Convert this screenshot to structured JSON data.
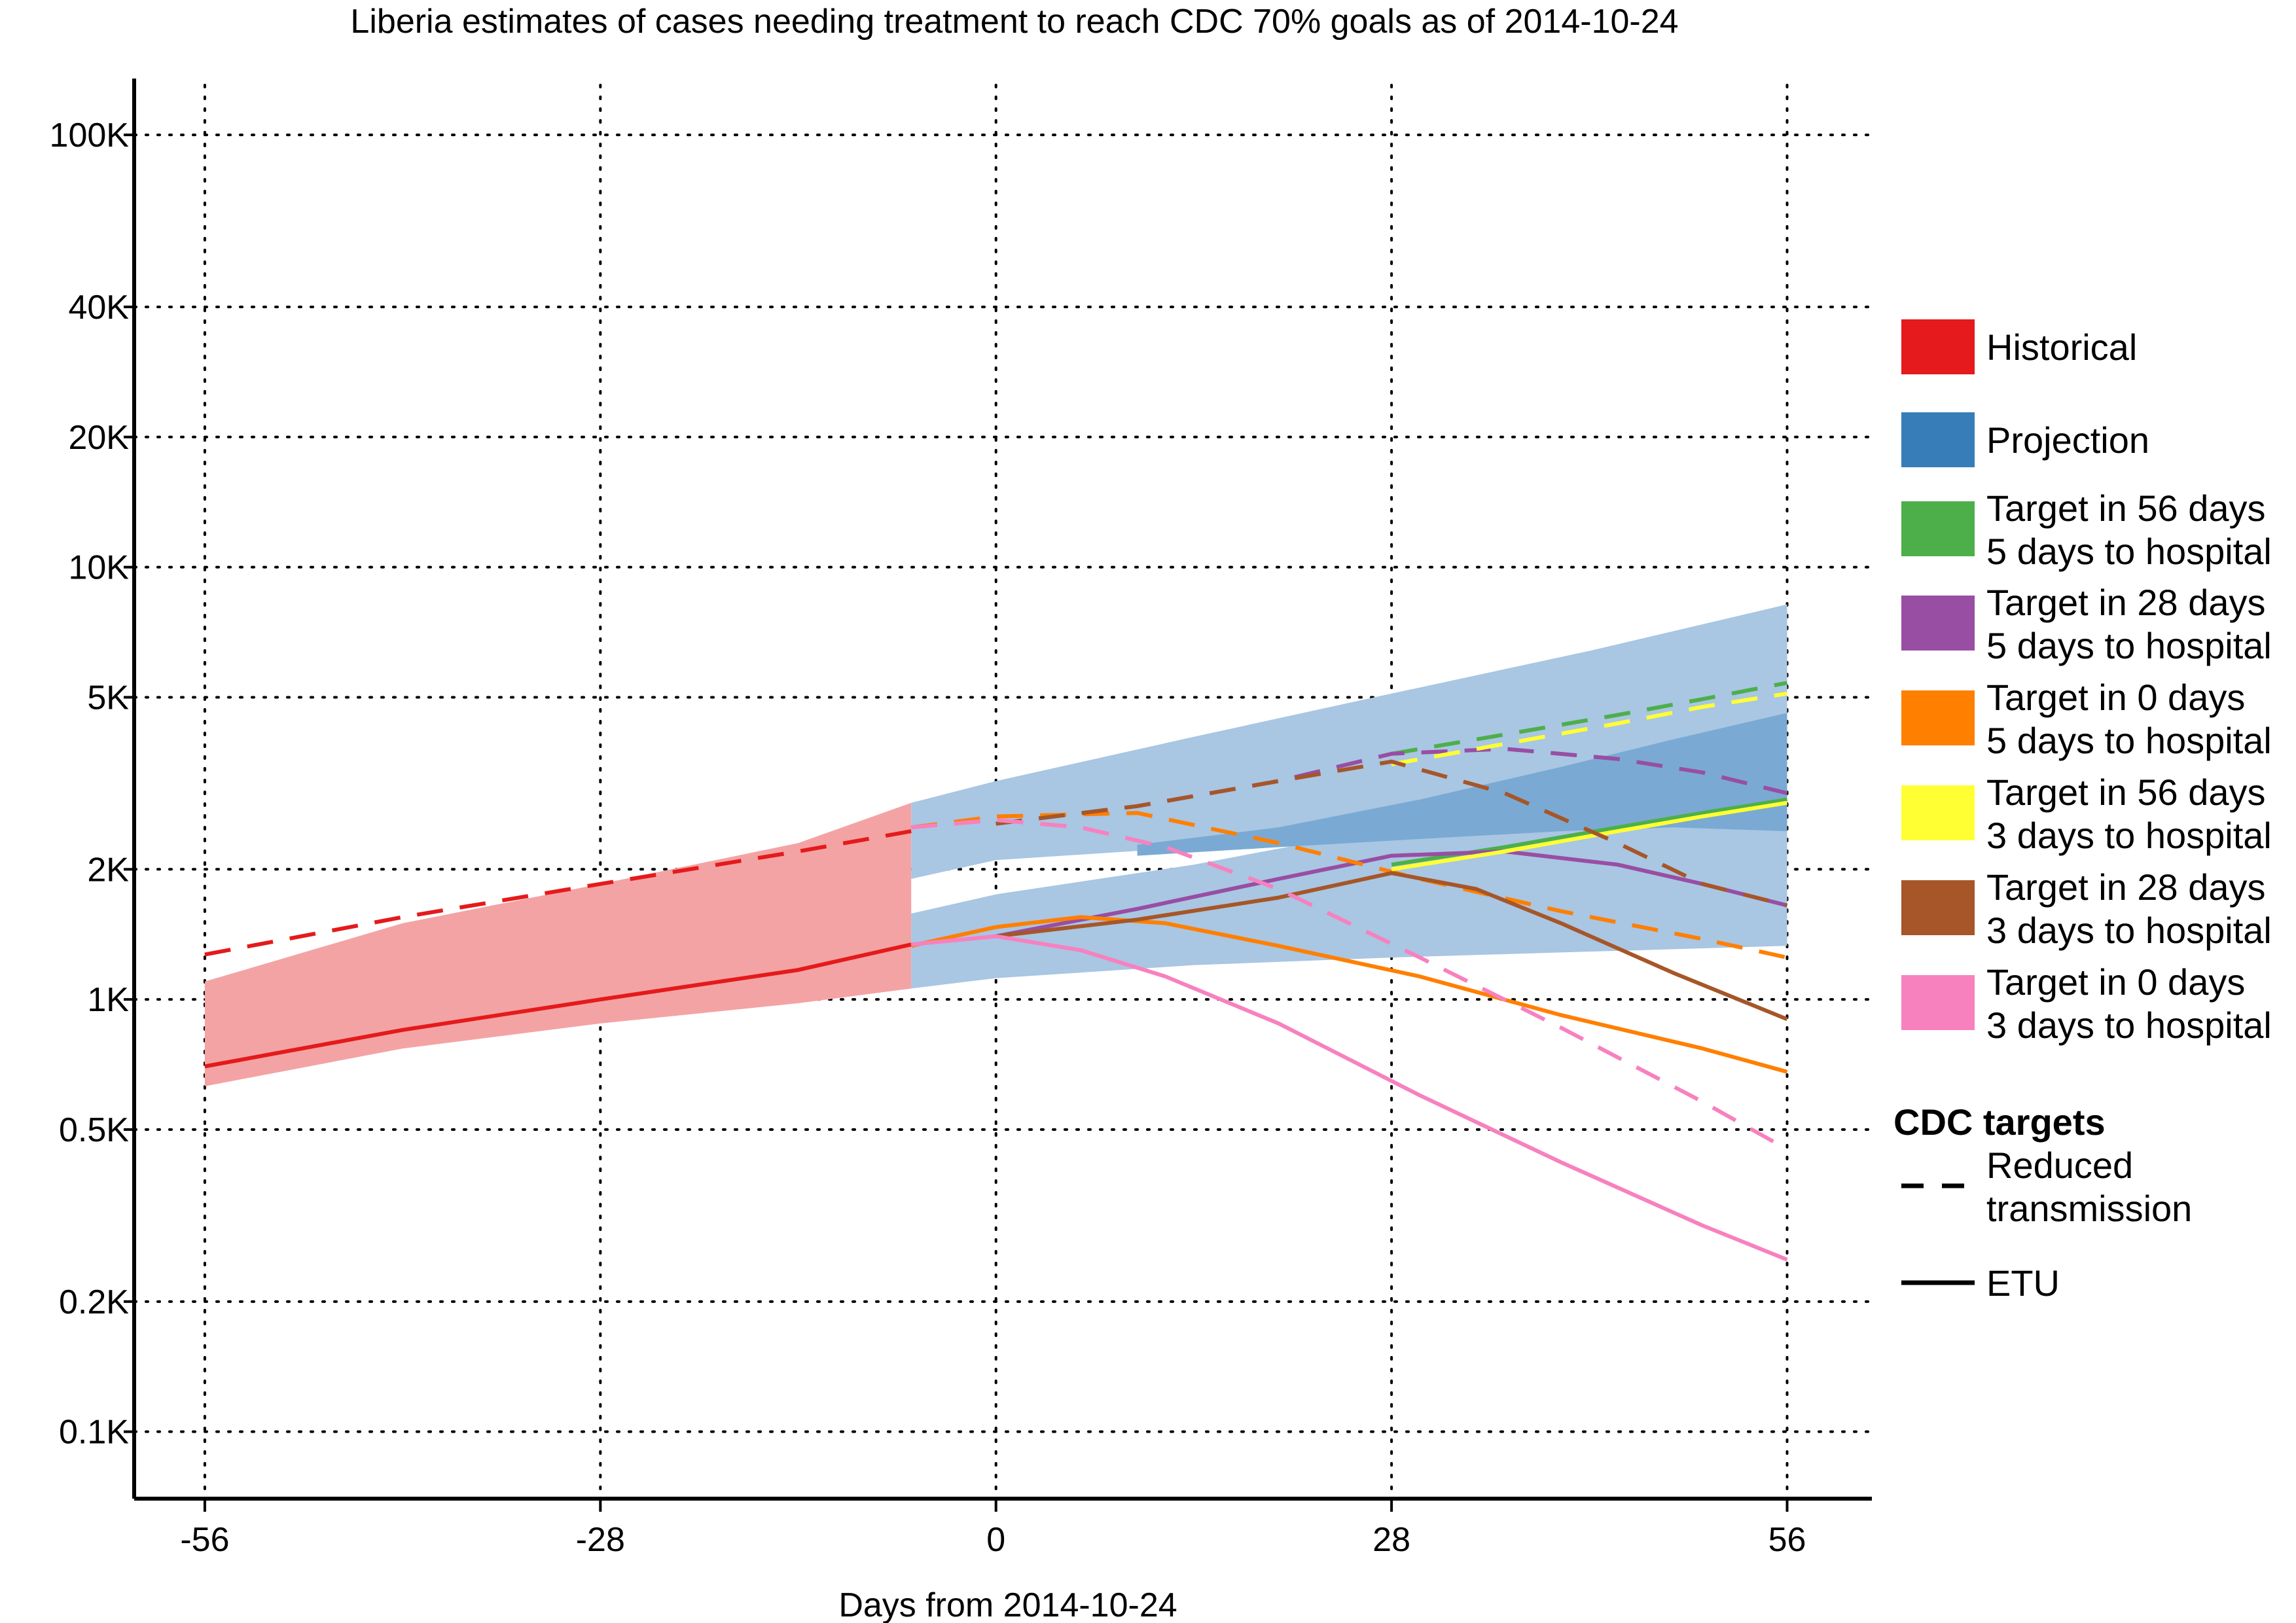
{
  "chart_data": {
    "type": "line",
    "title": "Liberia estimates of cases needing treatment to reach CDC 70% goals as of 2014-10-24",
    "xlabel": "Days from 2014-10-24",
    "ylabel": "",
    "y_scale": "log",
    "xlim": [
      -61,
      62
    ],
    "ylim": [
      70,
      135000
    ],
    "x_ticks": [
      -56,
      -28,
      0,
      28,
      56
    ],
    "x_tick_labels": [
      "-56",
      "-28",
      "0",
      "28",
      "56"
    ],
    "y_ticks": [
      100,
      200,
      500,
      1000,
      2000,
      5000,
      10000,
      20000,
      40000,
      100000
    ],
    "y_tick_labels": [
      "0.1K",
      "0.2K",
      "0.5K",
      "1K",
      "2K",
      "5K",
      "10K",
      "20K",
      "40K",
      "100K"
    ],
    "grid": "dotted",
    "colors": {
      "historical": "#e41a1c",
      "historical_band": "#f4a3a4",
      "projection_band": "#a9c6e3",
      "projection_inner_band": "#7aaad3",
      "target56_5": "#4daf4a",
      "target28_5": "#984ea3",
      "target0_5": "#ff7f00",
      "target56_3": "#ffff33",
      "target28_3": "#a65628",
      "target0_3": "#f781bf"
    },
    "bands": [
      {
        "name": "Historical",
        "color": "#f4a3a4",
        "x": [
          -56,
          -42,
          -28,
          -14,
          -6
        ],
        "lower": [
          630,
          770,
          880,
          980,
          1060
        ],
        "upper": [
          1100,
          1500,
          1850,
          2300,
          2850
        ]
      },
      {
        "name": "Historical",
        "color": "#f4a3a4",
        "x": [
          -56,
          -42,
          -28,
          -14,
          -6
        ],
        "lower": [
          630,
          770,
          880,
          980,
          1060
        ],
        "upper": [
          780,
          930,
          1100,
          1330,
          1600
        ]
      },
      {
        "name": "Projection",
        "color": "#a9c6e3",
        "x": [
          -6,
          0,
          14,
          28,
          42,
          56
        ],
        "lower": [
          1900,
          2100,
          2250,
          2400,
          2600,
          2800
        ],
        "upper": [
          2850,
          3200,
          4050,
          5100,
          6400,
          8200
        ]
      },
      {
        "name": "Projection",
        "color": "#a9c6e3",
        "x": [
          -6,
          0,
          14,
          28,
          42,
          56
        ],
        "lower": [
          1060,
          1120,
          1200,
          1250,
          1290,
          1330
        ],
        "upper": [
          1580,
          1750,
          2050,
          2500,
          3300,
          4600
        ]
      },
      {
        "name": "Projection",
        "color": "#7aaad3",
        "x": [
          10,
          20,
          30,
          40,
          48,
          56
        ],
        "lower": [
          2150,
          2250,
          2350,
          2450,
          2500,
          2450
        ],
        "upper": [
          2280,
          2500,
          2900,
          3450,
          4000,
          4600
        ]
      }
    ],
    "series": [
      {
        "name": "Historical",
        "color": "#e41a1c",
        "dash": true,
        "x": [
          -56,
          -42,
          -28,
          -14,
          -6
        ],
        "y": [
          1270,
          1550,
          1850,
          2200,
          2450
        ]
      },
      {
        "name": "Historical",
        "color": "#e41a1c",
        "dash": false,
        "x": [
          -56,
          -42,
          -28,
          -14,
          -6
        ],
        "y": [
          700,
          850,
          1000,
          1170,
          1340
        ]
      },
      {
        "name": "Target in 56 days 5 days to hospital",
        "color": "#4daf4a",
        "dash": true,
        "x": [
          28,
          36,
          44,
          50,
          56
        ],
        "y": [
          3700,
          4100,
          4550,
          4950,
          5400
        ]
      },
      {
        "name": "Target in 56 days 5 days to hospital",
        "color": "#4daf4a",
        "dash": false,
        "x": [
          28,
          36,
          44,
          50,
          56
        ],
        "y": [
          2050,
          2250,
          2500,
          2700,
          2900
        ]
      },
      {
        "name": "Target in 28 days 5 days to hospital",
        "color": "#984ea3",
        "dash": true,
        "x": [
          0,
          10,
          20,
          28,
          36,
          44,
          50,
          56
        ],
        "y": [
          2550,
          2800,
          3200,
          3700,
          3800,
          3600,
          3350,
          3000
        ]
      },
      {
        "name": "Target in 28 days 5 days to hospital",
        "color": "#984ea3",
        "dash": false,
        "x": [
          0,
          10,
          20,
          28,
          36,
          44,
          50,
          56
        ],
        "y": [
          1400,
          1620,
          1900,
          2150,
          2200,
          2050,
          1850,
          1650
        ]
      },
      {
        "name": "Target in 0 days 5 days to hospital",
        "color": "#ff7f00",
        "dash": true,
        "x": [
          -6,
          0,
          10,
          20,
          30,
          40,
          50,
          56
        ],
        "y": [
          2500,
          2650,
          2700,
          2300,
          1900,
          1600,
          1380,
          1250
        ]
      },
      {
        "name": "Target in 0 days 5 days to hospital",
        "color": "#ff7f00",
        "dash": false,
        "x": [
          -6,
          0,
          6,
          12,
          20,
          30,
          40,
          50,
          56
        ],
        "y": [
          1330,
          1470,
          1550,
          1500,
          1330,
          1130,
          920,
          770,
          680
        ]
      },
      {
        "name": "Target in 56 days 3 days to hospital",
        "color": "#ffff33",
        "dash": true,
        "x": [
          28,
          36,
          44,
          50,
          56
        ],
        "y": [
          3500,
          3900,
          4350,
          4750,
          5100
        ]
      },
      {
        "name": "Target in 56 days 3 days to hospital",
        "color": "#ffff33",
        "dash": false,
        "x": [
          28,
          36,
          44,
          50,
          56
        ],
        "y": [
          2000,
          2200,
          2450,
          2650,
          2850
        ]
      },
      {
        "name": "Target in 28 days 3 days to hospital",
        "color": "#a65628",
        "dash": true,
        "x": [
          0,
          10,
          20,
          28,
          36,
          44,
          50,
          56
        ],
        "y": [
          2550,
          2800,
          3200,
          3550,
          3000,
          2300,
          1850,
          1650
        ]
      },
      {
        "name": "Target in 28 days 3 days to hospital",
        "color": "#a65628",
        "dash": false,
        "x": [
          0,
          10,
          20,
          28,
          34,
          40,
          48,
          56
        ],
        "y": [
          1400,
          1530,
          1720,
          1960,
          1800,
          1500,
          1150,
          900
        ]
      },
      {
        "name": "Target in 0 days 3 days to hospital",
        "color": "#f781bf",
        "dash": true,
        "x": [
          -6,
          0,
          6,
          12,
          20,
          30,
          40,
          50,
          56
        ],
        "y": [
          2500,
          2600,
          2500,
          2250,
          1800,
          1250,
          860,
          580,
          450
        ]
      },
      {
        "name": "Target in 0 days 3 days to hospital",
        "color": "#f781bf",
        "dash": false,
        "x": [
          -6,
          0,
          6,
          12,
          20,
          30,
          40,
          50,
          56
        ],
        "y": [
          1340,
          1400,
          1300,
          1130,
          880,
          600,
          420,
          300,
          250
        ]
      }
    ],
    "legend": {
      "placement": "right",
      "items": [
        {
          "label": [
            "Historical"
          ],
          "color": "#e41a1c"
        },
        {
          "label": [
            "Projection"
          ],
          "color": "#377eb8"
        },
        {
          "label": [
            "Target in 56 days",
            "5 days to hospital"
          ],
          "color": "#4daf4a"
        },
        {
          "label": [
            "Target in 28 days",
            "5 days to hospital"
          ],
          "color": "#984ea3"
        },
        {
          "label": [
            "Target in 0 days",
            "5 days to hospital"
          ],
          "color": "#ff7f00"
        },
        {
          "label": [
            "Target in 56 days",
            "3 days to hospital"
          ],
          "color": "#ffff33"
        },
        {
          "label": [
            "Target in 28 days",
            "3 days to hospital"
          ],
          "color": "#a65628"
        },
        {
          "label": [
            "Target in 0 days",
            "3 days to hospital"
          ],
          "color": "#f781bf"
        }
      ],
      "linetype_title": "CDC targets",
      "linetype_items": [
        {
          "label": [
            "Reduced",
            "transmission"
          ],
          "dash": true
        },
        {
          "label": [
            "ETU"
          ],
          "dash": false
        }
      ]
    }
  }
}
